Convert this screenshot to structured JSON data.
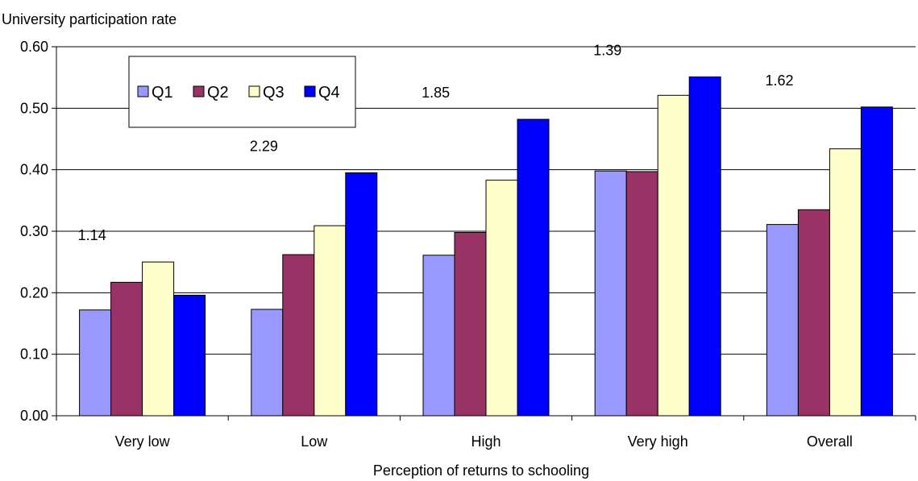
{
  "chart_data": {
    "type": "bar",
    "title": "",
    "ylabel": "University participation rate",
    "xlabel": "Perception of returns to schooling",
    "categories": [
      "Very low",
      "Low",
      "High",
      "Very high",
      "Overall"
    ],
    "ylim": [
      0,
      0.6
    ],
    "yticks": [
      "0.00",
      "0.10",
      "0.20",
      "0.30",
      "0.40",
      "0.50",
      "0.60"
    ],
    "grid": true,
    "legend_position": "top-left",
    "series": [
      {
        "name": "Q1",
        "color": "#9999ff",
        "values": [
          0.172,
          0.173,
          0.261,
          0.398,
          0.311
        ]
      },
      {
        "name": "Q2",
        "color": "#993366",
        "values": [
          0.217,
          0.262,
          0.298,
          0.397,
          0.335
        ]
      },
      {
        "name": "Q3",
        "color": "#ffffcc",
        "values": [
          0.25,
          0.309,
          0.383,
          0.521,
          0.434
        ]
      },
      {
        "name": "Q4",
        "color": "#0000ff",
        "values": [
          0.196,
          0.395,
          0.482,
          0.551,
          0.502
        ]
      }
    ],
    "annotations": [
      "1.14",
      "2.29",
      "1.85",
      "1.39",
      "1.62"
    ]
  }
}
